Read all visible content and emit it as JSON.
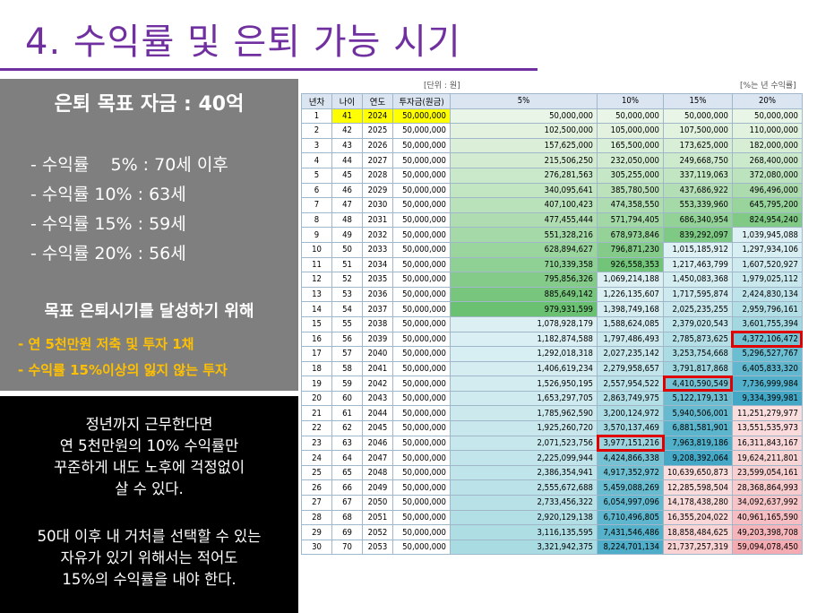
{
  "title": "4. 수익률 및 은퇴 가능 시기",
  "left_panel": {
    "goal": "은퇴 목표 자금 : 40억",
    "rates": [
      "- 수익률    5% : 70세 이후",
      "- 수익률 10% : 63세",
      "- 수익률 15% : 59세",
      "- 수익률 20% : 56세"
    ],
    "plan_title": "목표 은퇴시기를 달성하기 위해",
    "plan_items": [
      "- 연 5천만원 저축 및 투자 1채",
      "- 수익률 15%이상의 잃지 않는 투자"
    ]
  },
  "black_panel": {
    "note1": [
      "정년까지 근무한다면",
      "연 5천만원의 10% 수익률만",
      "꾸준하게 내도 노후에 걱정없이",
      "살 수 있다."
    ],
    "note2": [
      "50대 이후 내 거처를 선택할 수 있는",
      "자유가 있기 위해서는 적어도",
      "15%의 수익률을 내야 한다."
    ]
  },
  "table": {
    "unit_left": "[단위 : 원]",
    "unit_right": "[%는 년 수익률]",
    "headers": [
      "년차",
      "나이",
      "연도",
      "투자금(원금)",
      "5%",
      "10%",
      "15%",
      "20%"
    ],
    "rows": [
      [
        "1",
        "41",
        "2024",
        "50,000,000",
        "50,000,000",
        "50,000,000",
        "50,000,000",
        "50,000,000"
      ],
      [
        "2",
        "42",
        "2025",
        "50,000,000",
        "102,500,000",
        "105,000,000",
        "107,500,000",
        "110,000,000"
      ],
      [
        "3",
        "43",
        "2026",
        "50,000,000",
        "157,625,000",
        "165,500,000",
        "173,625,000",
        "182,000,000"
      ],
      [
        "4",
        "44",
        "2027",
        "50,000,000",
        "215,506,250",
        "232,050,000",
        "249,668,750",
        "268,400,000"
      ],
      [
        "5",
        "45",
        "2028",
        "50,000,000",
        "276,281,563",
        "305,255,000",
        "337,119,063",
        "372,080,000"
      ],
      [
        "6",
        "46",
        "2029",
        "50,000,000",
        "340,095,641",
        "385,780,500",
        "437,686,922",
        "496,496,000"
      ],
      [
        "7",
        "47",
        "2030",
        "50,000,000",
        "407,100,423",
        "474,358,550",
        "553,339,960",
        "645,795,200"
      ],
      [
        "8",
        "48",
        "2031",
        "50,000,000",
        "477,455,444",
        "571,794,405",
        "686,340,954",
        "824,954,240"
      ],
      [
        "9",
        "49",
        "2032",
        "50,000,000",
        "551,328,216",
        "678,973,846",
        "839,292,097",
        "1,039,945,088"
      ],
      [
        "10",
        "50",
        "2033",
        "50,000,000",
        "628,894,627",
        "796,871,230",
        "1,015,185,912",
        "1,297,934,106"
      ],
      [
        "11",
        "51",
        "2034",
        "50,000,000",
        "710,339,358",
        "926,558,353",
        "1,217,463,799",
        "1,607,520,927"
      ],
      [
        "12",
        "52",
        "2035",
        "50,000,000",
        "795,856,326",
        "1,069,214,188",
        "1,450,083,368",
        "1,979,025,112"
      ],
      [
        "13",
        "53",
        "2036",
        "50,000,000",
        "885,649,142",
        "1,226,135,607",
        "1,717,595,874",
        "2,424,830,134"
      ],
      [
        "14",
        "54",
        "2037",
        "50,000,000",
        "979,931,599",
        "1,398,749,168",
        "2,025,235,255",
        "2,959,796,161"
      ],
      [
        "15",
        "55",
        "2038",
        "50,000,000",
        "1,078,928,179",
        "1,588,624,085",
        "2,379,020,543",
        "3,601,755,394"
      ],
      [
        "16",
        "56",
        "2039",
        "50,000,000",
        "1,182,874,588",
        "1,797,486,493",
        "2,785,873,625",
        "4,372,106,472"
      ],
      [
        "17",
        "57",
        "2040",
        "50,000,000",
        "1,292,018,318",
        "2,027,235,142",
        "3,253,754,668",
        "5,296,527,767"
      ],
      [
        "18",
        "58",
        "2041",
        "50,000,000",
        "1,406,619,234",
        "2,279,958,657",
        "3,791,817,868",
        "6,405,833,320"
      ],
      [
        "19",
        "59",
        "2042",
        "50,000,000",
        "1,526,950,195",
        "2,557,954,522",
        "4,410,590,549",
        "7,736,999,984"
      ],
      [
        "20",
        "60",
        "2043",
        "50,000,000",
        "1,653,297,705",
        "2,863,749,975",
        "5,122,179,131",
        "9,334,399,981"
      ],
      [
        "21",
        "61",
        "2044",
        "50,000,000",
        "1,785,962,590",
        "3,200,124,972",
        "5,940,506,001",
        "11,251,279,977"
      ],
      [
        "22",
        "62",
        "2045",
        "50,000,000",
        "1,925,260,720",
        "3,570,137,469",
        "6,881,581,901",
        "13,551,535,973"
      ],
      [
        "23",
        "63",
        "2046",
        "50,000,000",
        "2,071,523,756",
        "3,977,151,216",
        "7,963,819,186",
        "16,311,843,167"
      ],
      [
        "24",
        "64",
        "2047",
        "50,000,000",
        "2,225,099,944",
        "4,424,866,338",
        "9,208,392,064",
        "19,624,211,801"
      ],
      [
        "25",
        "65",
        "2048",
        "50,000,000",
        "2,386,354,941",
        "4,917,352,972",
        "10,639,650,873",
        "23,599,054,161"
      ],
      [
        "26",
        "66",
        "2049",
        "50,000,000",
        "2,555,672,688",
        "5,459,088,269",
        "12,285,598,504",
        "28,368,864,993"
      ],
      [
        "27",
        "67",
        "2050",
        "50,000,000",
        "2,733,456,322",
        "6,054,997,096",
        "14,178,438,280",
        "34,092,637,992"
      ],
      [
        "28",
        "68",
        "2051",
        "50,000,000",
        "2,920,129,138",
        "6,710,496,805",
        "16,355,204,022",
        "40,961,165,590"
      ],
      [
        "29",
        "69",
        "2052",
        "50,000,000",
        "3,116,135,595",
        "7,431,546,486",
        "18,858,484,625",
        "49,203,398,708"
      ],
      [
        "30",
        "70",
        "2053",
        "50,000,000",
        "3,321,942,375",
        "8,224,701,134",
        "21,737,257,319",
        "59,094,078,450"
      ]
    ],
    "highlighted_cells": [
      [
        22,
        5
      ],
      [
        18,
        6
      ],
      [
        15,
        7
      ]
    ]
  }
}
